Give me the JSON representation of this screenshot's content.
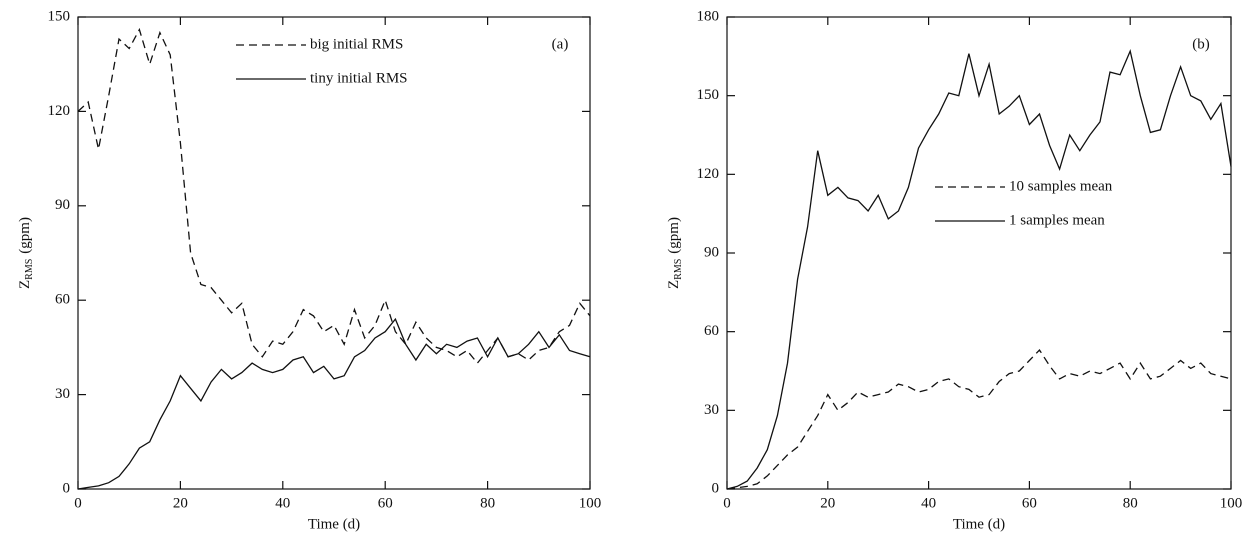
{
  "chart_data": [
    {
      "type": "line",
      "annotation": "(a)",
      "x_label": "Time (d)",
      "y_label": {
        "main": "Z",
        "sub": "RMS",
        "unit": "(gpm)"
      },
      "x": [
        0,
        2,
        4,
        6,
        8,
        10,
        12,
        14,
        16,
        18,
        20,
        22,
        24,
        26,
        28,
        30,
        32,
        34,
        36,
        38,
        40,
        42,
        44,
        46,
        48,
        50,
        52,
        54,
        56,
        58,
        60,
        62,
        64,
        66,
        68,
        70,
        72,
        74,
        76,
        78,
        80,
        82,
        84,
        86,
        88,
        90,
        92,
        94,
        96,
        98,
        100
      ],
      "series": [
        {
          "name": "big initial RMS",
          "color": "#111111",
          "linestyle": "dashed",
          "values": [
            120,
            123,
            108,
            125,
            143,
            140,
            146,
            135,
            145,
            138,
            110,
            75,
            65,
            64,
            60,
            56,
            59,
            46,
            42,
            47,
            46,
            50,
            57,
            55,
            50,
            52,
            46,
            57,
            48,
            52,
            60,
            50,
            46,
            53,
            48,
            45,
            44,
            42,
            44,
            40,
            44,
            48,
            42,
            43,
            41,
            44,
            45,
            50,
            52,
            59,
            55
          ]
        },
        {
          "name": "tiny initial RMS",
          "color": "#111111",
          "linestyle": "solid",
          "values": [
            0,
            0.5,
            1,
            2,
            4,
            8,
            13,
            15,
            22,
            28,
            36,
            32,
            28,
            34,
            38,
            35,
            37,
            40,
            38,
            37,
            38,
            41,
            42,
            37,
            39,
            35,
            36,
            42,
            44,
            48,
            50,
            54,
            46,
            41,
            46,
            43,
            46,
            45,
            47,
            48,
            42,
            48,
            42,
            43,
            46,
            50,
            45,
            49,
            44,
            43,
            42
          ]
        }
      ],
      "xlim": [
        0,
        100
      ],
      "xticks": [
        0,
        20,
        40,
        60,
        80,
        100
      ],
      "ylim": [
        0,
        150
      ],
      "yticks": [
        0,
        30,
        60,
        90,
        120,
        150
      ],
      "legend": "upper right"
    },
    {
      "type": "line",
      "annotation": "(b)",
      "x_label": "Time (d)",
      "y_label": {
        "main": "Z",
        "sub": "RMS",
        "unit": "(gpm)"
      },
      "x": [
        0,
        2,
        4,
        6,
        8,
        10,
        12,
        14,
        16,
        18,
        20,
        22,
        24,
        26,
        28,
        30,
        32,
        34,
        36,
        38,
        40,
        42,
        44,
        46,
        48,
        50,
        52,
        54,
        56,
        58,
        60,
        62,
        64,
        66,
        68,
        70,
        72,
        74,
        76,
        78,
        80,
        82,
        84,
        86,
        88,
        90,
        92,
        94,
        96,
        98,
        100
      ],
      "series": [
        {
          "name": "10 samples mean",
          "color": "#111111",
          "linestyle": "dashed",
          "values": [
            0,
            0.5,
            1,
            2,
            5,
            9,
            13,
            16,
            22,
            28,
            36,
            30,
            33,
            37,
            35,
            36,
            37,
            40,
            39,
            37,
            38,
            41,
            42,
            39,
            38,
            35,
            36,
            41,
            44,
            45,
            49,
            53,
            47,
            42,
            44,
            43,
            45,
            44,
            46,
            48,
            42,
            48,
            42,
            43,
            46,
            49,
            46,
            48,
            44,
            43,
            42
          ]
        },
        {
          "name": "1 samples mean",
          "color": "#111111",
          "linestyle": "solid",
          "values": [
            0,
            1,
            3,
            8,
            15,
            28,
            48,
            80,
            100,
            129,
            112,
            115,
            111,
            110,
            106,
            112,
            103,
            106,
            115,
            130,
            137,
            143,
            151,
            150,
            166,
            150,
            162,
            143,
            146,
            150,
            139,
            143,
            131,
            122,
            135,
            129,
            135,
            140,
            159,
            158,
            167,
            150,
            136,
            137,
            150,
            161,
            150,
            148,
            141,
            147,
            123
          ]
        }
      ],
      "xlim": [
        0,
        100
      ],
      "xticks": [
        0,
        20,
        40,
        60,
        80,
        100
      ],
      "ylim": [
        0,
        180
      ],
      "yticks": [
        0,
        30,
        60,
        90,
        120,
        150,
        180
      ],
      "legend": "center"
    }
  ]
}
